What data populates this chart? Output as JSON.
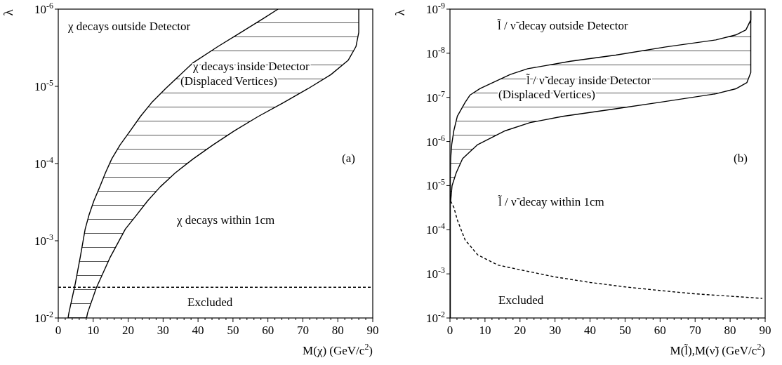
{
  "chart_data": [
    {
      "type": "line",
      "xlabel": "M(χ) (GeV/c$^{2}$)",
      "ylabel": "λ",
      "log": "y",
      "xlim": [
        0,
        90
      ],
      "ylim": [
        0.01,
        1e-06
      ],
      "xticks": [
        0,
        {
          "value": 2,
          "label": null
        },
        {
          "value": 4,
          "label": null
        },
        {
          "value": 6,
          "label": null
        },
        {
          "value": 8,
          "label": null
        },
        10,
        {
          "value": 12,
          "label": null
        },
        {
          "value": 14,
          "label": null
        },
        {
          "value": 16,
          "label": null
        },
        {
          "value": 18,
          "label": null
        },
        20,
        {
          "value": 22,
          "label": null
        },
        {
          "value": 24,
          "label": null
        },
        {
          "value": 26,
          "label": null
        },
        {
          "value": 28,
          "label": null
        },
        30,
        {
          "value": 32,
          "label": null
        },
        {
          "value": 34,
          "label": null
        },
        {
          "value": 36,
          "label": null
        },
        {
          "value": 38,
          "label": null
        },
        40,
        {
          "value": 42,
          "label": null
        },
        {
          "value": 44,
          "label": null
        },
        {
          "value": 46,
          "label": null
        },
        {
          "value": 48,
          "label": null
        },
        50,
        {
          "value": 52,
          "label": null
        },
        {
          "value": 54,
          "label": null
        },
        {
          "value": 56,
          "label": null
        },
        {
          "value": 58,
          "label": null
        },
        60,
        {
          "value": 62,
          "label": null
        },
        {
          "value": 64,
          "label": null
        },
        {
          "value": 66,
          "label": null
        },
        {
          "value": 68,
          "label": null
        },
        70,
        {
          "value": 72,
          "label": null
        },
        {
          "value": 74,
          "label": null
        },
        {
          "value": 76,
          "label": null
        },
        {
          "value": 78,
          "label": null
        },
        80,
        {
          "value": 82,
          "label": null
        },
        {
          "value": 84,
          "label": null
        },
        {
          "value": 86,
          "label": null
        },
        {
          "value": 88,
          "label": null
        },
        90
      ],
      "yticks": [
        {
          "value": 0.01,
          "label": "10$^{-2}$"
        },
        {
          "value": 0.001,
          "label": "10$^{-3}$"
        },
        {
          "value": 0.0001,
          "label": "10$^{-4}$"
        },
        {
          "value": 1e-05,
          "label": "10$^{-5}$"
        },
        {
          "value": 1e-06,
          "label": "10$^{-6}$"
        }
      ],
      "series": [
        {
          "color": "#000000",
          "line_style": "solid",
          "x": [
            62.9,
            58.6,
            52.2,
            45.7,
            38.6,
            30.7,
            26.7,
            23.5,
            20.6,
            17.7,
            15.3,
            13.5,
            11.9,
            10.2,
            8.8,
            7.7,
            6.3,
            4.8,
            3.05,
            2.8
          ],
          "values": [
            1e-06,
            1.33e-06,
            2.01e-06,
            3.05e-06,
            4.94e-06,
            1.07e-05,
            1.63e-05,
            2.46e-05,
            3.77e-05,
            5.73e-05,
            8.7e-05,
            0.000132,
            0.0002,
            0.000303,
            0.000464,
            0.000706,
            0.00162,
            0.00372,
            0.00857,
            0.01
          ]
        },
        {
          "color": "#000000",
          "line_style": "solid",
          "x": [
            86.0,
            86.0,
            85.2,
            83.0,
            78.0,
            71.5,
            64.4,
            57.2,
            50.4,
            44.3,
            38.6,
            33.5,
            29.2,
            25.6,
            22.4,
            19.2,
            14.9,
            10.9,
            8.4,
            8.1
          ],
          "values": [
            1e-06,
            2e-06,
            3.05e-06,
            4.58e-06,
            7.06e-06,
            1.07e-05,
            1.63e-05,
            2.46e-05,
            3.77e-05,
            5.73e-05,
            8.7e-05,
            0.000132,
            0.0002,
            0.000303,
            0.000464,
            0.000706,
            0.00162,
            0.00406,
            0.00857,
            0.01
          ]
        }
      ],
      "ref_lines": [
        {
          "axis": "y",
          "value": 0.004,
          "line_style": "dashed",
          "color": "#000000"
        }
      ],
      "annotations": [
        "χ decays outside Detector",
        "χ decays inside Detector",
        "(Displaced Vertices)",
        "χ decays within 1cm",
        "Excluded",
        "(a)"
      ]
    },
    {
      "type": "line",
      "xlabel": "M(l̃),M(ν̃) (GeV/c$^{2}$)",
      "ylabel": "λ",
      "log": "y",
      "xlim": [
        0,
        90
      ],
      "ylim": [
        0.01,
        1e-09
      ],
      "xticks": [
        0,
        {
          "value": 2,
          "label": null
        },
        {
          "value": 4,
          "label": null
        },
        {
          "value": 6,
          "label": null
        },
        {
          "value": 8,
          "label": null
        },
        10,
        {
          "value": 12,
          "label": null
        },
        {
          "value": 14,
          "label": null
        },
        {
          "value": 16,
          "label": null
        },
        {
          "value": 18,
          "label": null
        },
        20,
        {
          "value": 22,
          "label": null
        },
        {
          "value": 24,
          "label": null
        },
        {
          "value": 26,
          "label": null
        },
        {
          "value": 28,
          "label": null
        },
        30,
        {
          "value": 32,
          "label": null
        },
        {
          "value": 34,
          "label": null
        },
        {
          "value": 36,
          "label": null
        },
        {
          "value": 38,
          "label": null
        },
        40,
        {
          "value": 42,
          "label": null
        },
        {
          "value": 44,
          "label": null
        },
        {
          "value": 46,
          "label": null
        },
        {
          "value": 48,
          "label": null
        },
        50,
        {
          "value": 52,
          "label": null
        },
        {
          "value": 54,
          "label": null
        },
        {
          "value": 56,
          "label": null
        },
        {
          "value": 58,
          "label": null
        },
        60,
        {
          "value": 62,
          "label": null
        },
        {
          "value": 64,
          "label": null
        },
        {
          "value": 66,
          "label": null
        },
        {
          "value": 68,
          "label": null
        },
        70,
        {
          "value": 72,
          "label": null
        },
        {
          "value": 74,
          "label": null
        },
        {
          "value": 76,
          "label": null
        },
        {
          "value": 78,
          "label": null
        },
        80,
        {
          "value": 82,
          "label": null
        },
        {
          "value": 84,
          "label": null
        },
        {
          "value": 86,
          "label": null
        },
        {
          "value": 88,
          "label": null
        },
        90
      ],
      "yticks": [
        {
          "value": 0.01,
          "label": "10$^{-2}$"
        },
        {
          "value": 0.001,
          "label": "10$^{-3}$"
        },
        {
          "value": 0.0001,
          "label": "10$^{-4}$"
        },
        {
          "value": 1e-05,
          "label": "10$^{-5}$"
        },
        {
          "value": 1e-06,
          "label": "10$^{-6}$"
        },
        {
          "value": 1e-07,
          "label": "10$^{-7}$"
        },
        {
          "value": 1e-08,
          "label": "10$^{-8}$"
        },
        {
          "value": 1e-09,
          "label": "10$^{-9}$"
        }
      ],
      "series": [
        {
          "color": "#000000",
          "line_style": "solid",
          "x": [
            85.9,
            85.9,
            84.5,
            81.6,
            75.9,
            61.6,
            47.3,
            34.4,
            22.2,
            17.2,
            8.6,
            5.7,
            4.3,
            2.1,
            1.1,
            0.5,
            0.2,
            0.1,
            0.1
          ],
          "values": [
            1.1e-09,
            1.76e-09,
            2.96e-09,
            3.85e-09,
            4.99e-09,
            7.2e-09,
            1.1e-08,
            1.52e-08,
            2.24e-08,
            3.03e-08,
            6.3e-08,
            8.9e-08,
            1.31e-07,
            2.68e-07,
            5.7e-07,
            1.17e-06,
            2.45e-06,
            5.8e-06,
            0.01
          ]
        },
        {
          "color": "#000000",
          "line_style": "solid",
          "x": [
            85.9,
            85.9,
            84.8,
            81.6,
            75.9,
            59.4,
            47.3,
            32.2,
            22.9,
            15.8,
            7.9,
            3.6,
            1.8,
            0.6,
            0.2
          ],
          "values": [
            1.1e-09,
            2.73e-08,
            4.6e-08,
            6.4e-08,
            8.3e-08,
            1.31e-07,
            1.82e-07,
            2.69e-07,
            3.73e-07,
            5.7e-07,
            1.18e-06,
            2.45e-06,
            5.1e-06,
            1e-05,
            2.24e-05
          ]
        },
        {
          "color": "#000000",
          "line_style": "dashed",
          "x": [
            0.2,
            1.1,
            2.1,
            4.3,
            7.9,
            13.6,
            20.1,
            29.9,
            40.1,
            50.1,
            59.8,
            69.8,
            79.8,
            89.2
          ],
          "values": [
            2.24e-05,
            3.1e-05,
            6e-05,
            0.000169,
            0.00037,
            0.00063,
            0.00081,
            0.00117,
            0.00157,
            0.00198,
            0.00238,
            0.00283,
            0.0032,
            0.0036
          ]
        }
      ],
      "annotations": [
        "l̃ / ν̃ decay outside Detector",
        "l̃ / ν̃ decay inside Detector",
        "(Displaced Vertices)",
        "l̃ / ν̃ decay within 1cm",
        "Excluded",
        "(b)"
      ]
    }
  ]
}
